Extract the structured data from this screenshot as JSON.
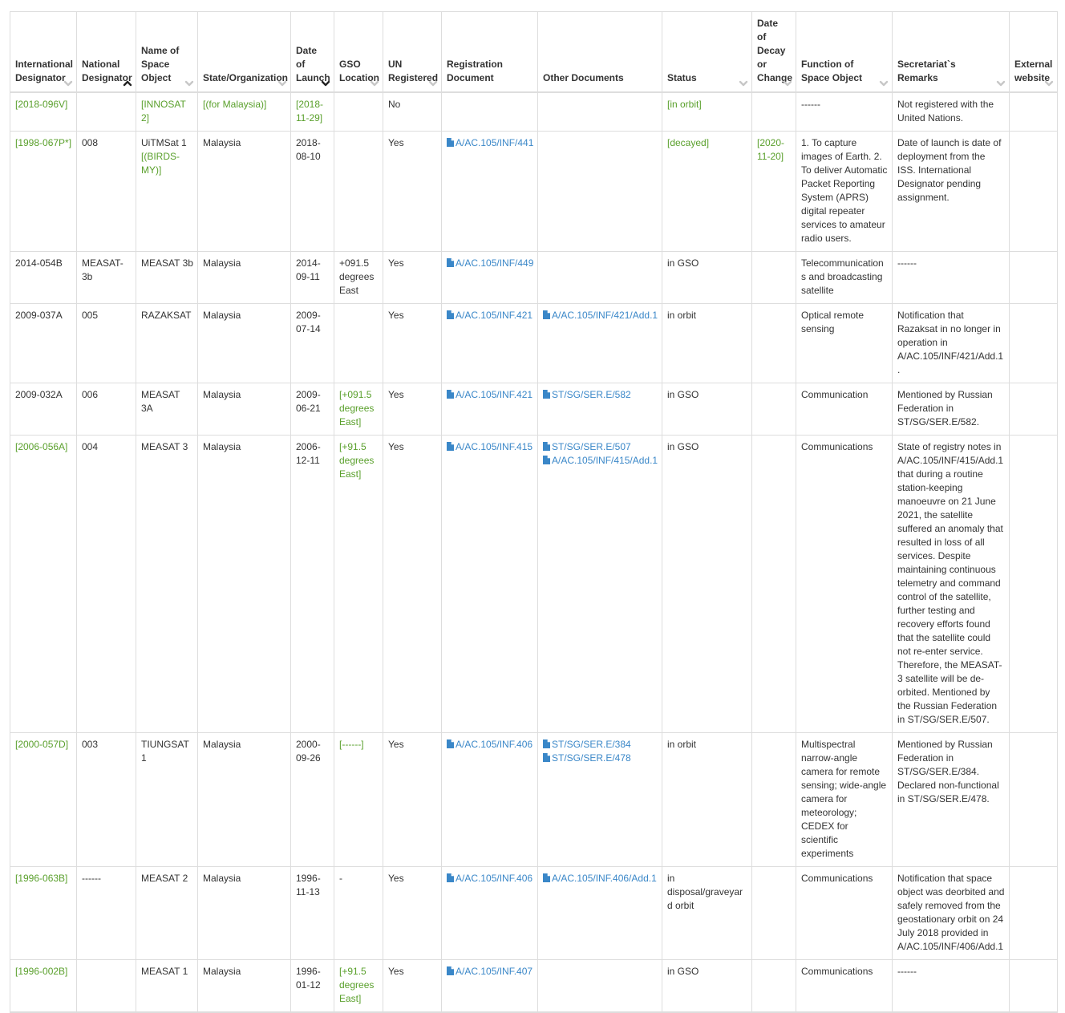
{
  "colors": {
    "link_blue": "#3a87c8",
    "green": "#5aa02c",
    "text": "#333333",
    "border": "#dddddd",
    "sort_inactive": "#c7c7c7",
    "sort_active": "#222222"
  },
  "columns": [
    {
      "key": "intl",
      "label": "International Designator",
      "sort": "none"
    },
    {
      "key": "natl",
      "label": "National Designator",
      "sort": "asc"
    },
    {
      "key": "name",
      "label": "Name of Space Object",
      "sort": "none"
    },
    {
      "key": "state",
      "label": "State/Organization",
      "sort": "none"
    },
    {
      "key": "launch",
      "label": "Date of Launch",
      "sort": "desc"
    },
    {
      "key": "gso",
      "label": "GSO Location",
      "sort": "none"
    },
    {
      "key": "un",
      "label": "UN Registered",
      "sort": "none"
    },
    {
      "key": "regdoc",
      "label": "Registration Document",
      "sort": "hidden"
    },
    {
      "key": "otherdoc",
      "label": "Other Documents",
      "sort": "hidden"
    },
    {
      "key": "status",
      "label": "Status",
      "sort": "none"
    },
    {
      "key": "decay",
      "label": "Date of Decay or Change",
      "sort": "none"
    },
    {
      "key": "function",
      "label": "Function of Space Object",
      "sort": "none"
    },
    {
      "key": "remarks",
      "label": "Secretariat`s Remarks",
      "sort": "none"
    },
    {
      "key": "website",
      "label": "External website",
      "sort": "none"
    }
  ],
  "rows": [
    {
      "intl": {
        "text": "[2018-096V]",
        "green": true
      },
      "natl": {
        "text": ""
      },
      "name": {
        "text": " [INNOSAT 2]",
        "green": true
      },
      "state": {
        "text": "[(for Malaysia)]",
        "green": true
      },
      "launch": {
        "text": "[2018-11-29]",
        "green": true
      },
      "gso": {
        "text": ""
      },
      "un": {
        "text": "No"
      },
      "regdoc": [],
      "otherdoc": [],
      "status": {
        "text": "[in orbit]",
        "green": true
      },
      "decay": {
        "text": ""
      },
      "function": {
        "text": "------"
      },
      "remarks": {
        "text": "Not registered with the United Nations."
      },
      "website": {
        "text": ""
      }
    },
    {
      "intl": {
        "text": "[1998-067P*]",
        "green": true
      },
      "natl": {
        "text": "008"
      },
      "name": {
        "text": "UiTMSat 1 ",
        "green_suffix": "[(BIRDS-MY)]"
      },
      "state": {
        "text": "Malaysia"
      },
      "launch": {
        "text": "2018-08-10"
      },
      "gso": {
        "text": ""
      },
      "un": {
        "text": "Yes"
      },
      "regdoc": [
        "A/AC.105/INF/441"
      ],
      "otherdoc": [],
      "status": {
        "text": "[decayed]",
        "green": true
      },
      "decay": {
        "text": "[2020-11-20]",
        "green": true
      },
      "function": {
        "text": "1. To capture images of Earth. 2. To deliver Automatic Packet Reporting System (APRS) digital repeater services to amateur radio users."
      },
      "remarks": {
        "text": "Date of launch is date of deployment from the ISS. International Designator pending assignment."
      },
      "website": {
        "text": ""
      }
    },
    {
      "intl": {
        "text": "2014-054B"
      },
      "natl": {
        "text": "MEASAT-3b"
      },
      "name": {
        "text": "MEASAT 3b"
      },
      "state": {
        "text": "Malaysia"
      },
      "launch": {
        "text": "2014-09-11"
      },
      "gso": {
        "text": "+091.5 degrees East"
      },
      "un": {
        "text": "Yes"
      },
      "regdoc": [
        "A/AC.105/INF/449"
      ],
      "otherdoc": [],
      "status": {
        "text": "in GSO"
      },
      "decay": {
        "text": ""
      },
      "function": {
        "text": "Telecommunications and broadcasting satellite"
      },
      "remarks": {
        "text": "------"
      },
      "website": {
        "text": ""
      }
    },
    {
      "intl": {
        "text": "2009-037A"
      },
      "natl": {
        "text": "005"
      },
      "name": {
        "text": "RAZAKSAT"
      },
      "state": {
        "text": "Malaysia"
      },
      "launch": {
        "text": "2009-07-14"
      },
      "gso": {
        "text": ""
      },
      "un": {
        "text": "Yes"
      },
      "regdoc": [
        "A/AC.105/INF.421"
      ],
      "otherdoc": [
        "A/AC.105/INF/421/Add.1"
      ],
      "status": {
        "text": "in orbit"
      },
      "decay": {
        "text": ""
      },
      "function": {
        "text": "Optical remote sensing"
      },
      "remarks": {
        "text": "Notification that Razaksat in no longer in operation in A/AC.105/INF/421/Add.1."
      },
      "website": {
        "text": ""
      }
    },
    {
      "intl": {
        "text": "2009-032A"
      },
      "natl": {
        "text": "006"
      },
      "name": {
        "text": "MEASAT 3A"
      },
      "state": {
        "text": "Malaysia"
      },
      "launch": {
        "text": "2009-06-21"
      },
      "gso": {
        "text": "[+091.5 degrees East]",
        "green": true
      },
      "un": {
        "text": "Yes"
      },
      "regdoc": [
        "A/AC.105/INF.421"
      ],
      "otherdoc": [
        "ST/SG/SER.E/582"
      ],
      "status": {
        "text": "in GSO"
      },
      "decay": {
        "text": ""
      },
      "function": {
        "text": "Communication"
      },
      "remarks": {
        "text": "Mentioned by Russian Federation in ST/SG/SER.E/582."
      },
      "website": {
        "text": ""
      }
    },
    {
      "intl": {
        "text": "[2006-056A]",
        "green": true
      },
      "natl": {
        "text": "004"
      },
      "name": {
        "text": "MEASAT 3"
      },
      "state": {
        "text": "Malaysia"
      },
      "launch": {
        "text": "2006-12-11"
      },
      "gso": {
        "text": "[+91.5 degrees East]",
        "green": true
      },
      "un": {
        "text": "Yes"
      },
      "regdoc": [
        "A/AC.105/INF.415"
      ],
      "otherdoc": [
        "ST/SG/SER.E/507",
        "A/AC.105/INF/415/Add.1"
      ],
      "status": {
        "text": "in GSO"
      },
      "decay": {
        "text": ""
      },
      "function": {
        "text": "Communications"
      },
      "remarks": {
        "text": "State of registry notes in A/AC.105/INF/415/Add.1 that during a routine station-keeping manoeuvre on 21 June 2021, the satellite suffered an anomaly that resulted in loss of all services. Despite maintaining continuous telemetry and command control of the satellite, further testing and recovery efforts found that the satellite could not re-enter service. Therefore, the MEASAT-3 satellite will be de-orbited. Mentioned by the Russian Federation in ST/SG/SER.E/507."
      },
      "website": {
        "text": ""
      }
    },
    {
      "intl": {
        "text": "[2000-057D]",
        "green": true
      },
      "natl": {
        "text": "003"
      },
      "name": {
        "text": "TIUNGSAT 1"
      },
      "state": {
        "text": "Malaysia"
      },
      "launch": {
        "text": "2000-09-26"
      },
      "gso": {
        "text": "[------]",
        "green": true
      },
      "un": {
        "text": "Yes"
      },
      "regdoc": [
        "A/AC.105/INF.406"
      ],
      "otherdoc": [
        "ST/SG/SER.E/384",
        "ST/SG/SER.E/478"
      ],
      "status": {
        "text": "in orbit"
      },
      "decay": {
        "text": ""
      },
      "function": {
        "text": "Multispectral narrow-angle camera for remote sensing; wide-angle camera for meteorology; CEDEX for scientific experiments"
      },
      "remarks": {
        "text": "Mentioned by Russian Federation in ST/SG/SER.E/384. Declared non-functional in ST/SG/SER.E/478."
      },
      "website": {
        "text": ""
      }
    },
    {
      "intl": {
        "text": "[1996-063B]",
        "green": true
      },
      "natl": {
        "text": "------"
      },
      "name": {
        "text": "MEASAT 2"
      },
      "state": {
        "text": "Malaysia"
      },
      "launch": {
        "text": "1996-11-13"
      },
      "gso": {
        "text": "-"
      },
      "un": {
        "text": "Yes"
      },
      "regdoc": [
        "A/AC.105/INF.406"
      ],
      "otherdoc": [
        "A/AC.105/INF.406/Add.1"
      ],
      "status": {
        "text": "in disposal/graveyard orbit"
      },
      "decay": {
        "text": ""
      },
      "function": {
        "text": "Communications"
      },
      "remarks": {
        "text": "Notification that space object was deorbited and safely removed from the geostationary orbit on 24 July 2018 provided in A/AC.105/INF/406/Add.1"
      },
      "website": {
        "text": ""
      }
    },
    {
      "intl": {
        "text": "[1996-002B]",
        "green": true
      },
      "natl": {
        "text": ""
      },
      "name": {
        "text": "MEASAT 1"
      },
      "state": {
        "text": "Malaysia"
      },
      "launch": {
        "text": "1996-01-12"
      },
      "gso": {
        "text": "[+91.5 degrees East]",
        "green": true
      },
      "un": {
        "text": "Yes"
      },
      "regdoc": [
        "A/AC.105/INF.407"
      ],
      "otherdoc": [],
      "status": {
        "text": "in GSO"
      },
      "decay": {
        "text": ""
      },
      "function": {
        "text": "Communications"
      },
      "remarks": {
        "text": "------"
      },
      "website": {
        "text": ""
      }
    }
  ]
}
